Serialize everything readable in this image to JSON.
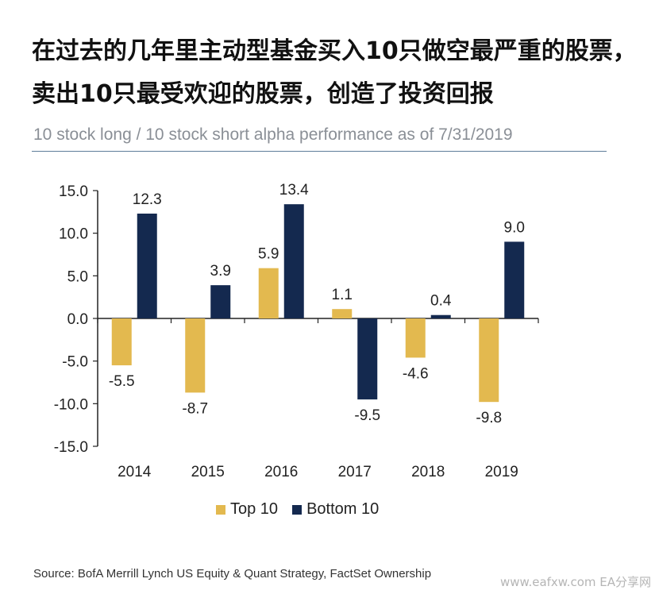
{
  "headline": "在过去的几年里主动型基金买入10只做空最严重的股票，卖出10只最受欢迎的股票，创造了投资回报",
  "chart_data": {
    "type": "bar",
    "title": "10 stock long / 10 stock short alpha performance as of 7/31/2019",
    "categories": [
      "2014",
      "2015",
      "2016",
      "2017",
      "2018",
      "2019"
    ],
    "series": [
      {
        "name": "Top 10",
        "color": "#e3b94f",
        "values": [
          -5.5,
          -8.7,
          5.9,
          1.1,
          -4.6,
          -9.8
        ]
      },
      {
        "name": "Bottom 10",
        "color": "#14294f",
        "values": [
          12.3,
          3.9,
          13.4,
          -9.5,
          0.4,
          9.0
        ]
      }
    ],
    "ylim": [
      -15,
      15
    ],
    "yticks": [
      "15.0",
      "10.0",
      "5.0",
      "0.0",
      "-5.0",
      "-10.0",
      "-15.0"
    ],
    "grid": false,
    "legend_position": "bottom"
  },
  "source": "Source: BofA Merrill Lynch US Equity & Quant Strategy, FactSet Ownership",
  "watermark": "www.eafxw.com  EA分享网"
}
